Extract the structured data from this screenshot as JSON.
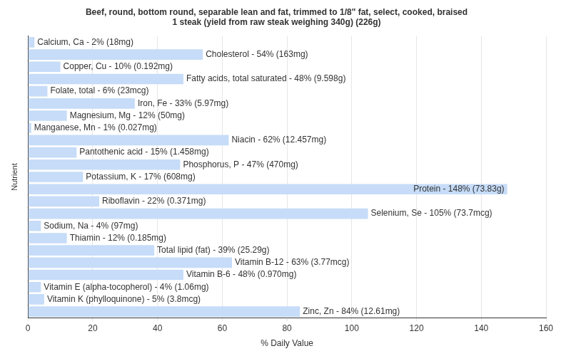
{
  "chart_data": {
    "type": "bar",
    "orientation": "horizontal",
    "title": [
      "Beef, round, bottom round, separable lean and fat, trimmed to 1/8\" fat, select, cooked, braised",
      "1 steak (yield from raw steak weighing 340g) (226g)"
    ],
    "xlabel": "% Daily Value",
    "ylabel": "Nutrient",
    "categories": [
      "Calcium, Ca",
      "Cholesterol",
      "Copper, Cu",
      "Fatty acids, total saturated",
      "Folate, total",
      "Iron, Fe",
      "Magnesium, Mg",
      "Manganese, Mn",
      "Niacin",
      "Pantothenic acid",
      "Phosphorus, P",
      "Potassium, K",
      "Protein",
      "Riboflavin",
      "Selenium, Se",
      "Sodium, Na",
      "Thiamin",
      "Total lipid (fat)",
      "Vitamin B-12",
      "Vitamin B-6",
      "Vitamin E (alpha-tocopherol)",
      "Vitamin K (phylloquinone)",
      "Zinc, Zn"
    ],
    "values": [
      2,
      54,
      10,
      48,
      6,
      33,
      12,
      1,
      62,
      15,
      47,
      17,
      148,
      22,
      105,
      4,
      12,
      39,
      63,
      48,
      4,
      5,
      84
    ],
    "value_labels": [
      "Calcium, Ca - 2% (18mg)",
      "Cholesterol - 54% (163mg)",
      "Copper, Cu - 10% (0.192mg)",
      "Fatty acids, total saturated - 48% (9.598g)",
      "Folate, total - 6% (23mcg)",
      "Iron, Fe - 33% (5.97mg)",
      "Magnesium, Mg - 12% (50mg)",
      "Manganese, Mn - 1% (0.027mg)",
      "Niacin - 62% (12.457mg)",
      "Pantothenic acid - 15% (1.458mg)",
      "Phosphorus, P - 47% (470mg)",
      "Potassium, K - 17% (608mg)",
      "Protein - 148% (73.83g)",
      "Riboflavin - 22% (0.371mg)",
      "Selenium, Se - 105% (73.7mcg)",
      "Sodium, Na - 4% (97mg)",
      "Thiamin - 12% (0.185mg)",
      "Total lipid (fat) - 39% (25.29g)",
      "Vitamin B-12 - 63% (3.77mcg)",
      "Vitamin B-6 - 48% (0.970mg)",
      "Vitamin E (alpha-tocopherol) - 4% (1.06mg)",
      "Vitamin K (phylloquinone) - 5% (3.8mcg)",
      "Zinc, Zn - 84% (12.61mg)"
    ],
    "color": "#c6dcf8",
    "xlim": [
      0,
      160
    ],
    "xticks": [
      0,
      20,
      40,
      60,
      80,
      100,
      120,
      140,
      160
    ],
    "grid": true,
    "data_labels": true,
    "tick_labels": "x"
  }
}
